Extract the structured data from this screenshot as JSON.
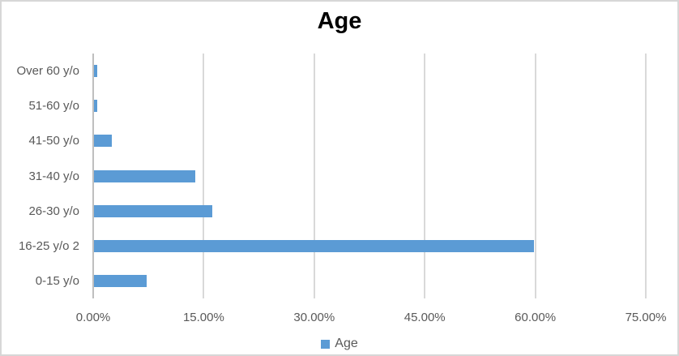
{
  "chart_data": {
    "type": "bar",
    "orientation": "horizontal",
    "title": "Age",
    "legend": {
      "label": "Age",
      "position": "bottom",
      "swatch_color": "#5b9bd5"
    },
    "categories_top_to_bottom": [
      "Over 60 y/o",
      "51-60 y/o",
      "41-50 y/o",
      "31-40 y/o",
      "26-30 y/o",
      "16-25 y/o 2",
      "0-15 y/o"
    ],
    "values_percent": [
      0.47,
      0.47,
      2.37,
      13.74,
      16.11,
      59.72,
      7.11
    ],
    "xlabel": "",
    "ylabel": "",
    "xlim": [
      0,
      75
    ],
    "xtick_values": [
      0,
      15,
      30,
      45,
      60,
      75
    ],
    "xtick_labels": [
      "0.00%",
      "15.00%",
      "30.00%",
      "45.00%",
      "60.00%",
      "75.00%"
    ],
    "grid": "vertical-only",
    "colors": {
      "bar": "#5b9bd5",
      "gridline": "#d9d9d9",
      "axis_line": "#bfbfbf",
      "tick_text": "#595959",
      "category_text": "#595959",
      "title_text": "#000000",
      "border": "#d7d7d7",
      "background": "#ffffff"
    }
  }
}
